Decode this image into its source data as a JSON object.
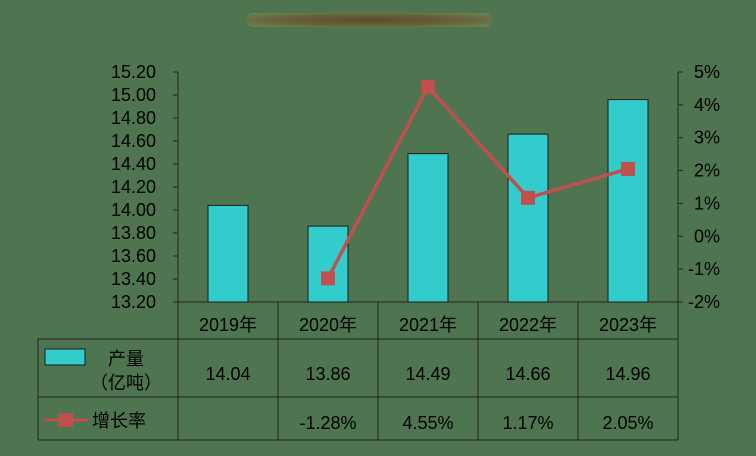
{
  "chart_data": {
    "type": "bar",
    "categories": [
      "2019年",
      "2020年",
      "2021年",
      "2022年",
      "2023年"
    ],
    "series": [
      {
        "name": "产量（亿吨）",
        "name_lines": [
          "产量",
          "（亿吨）"
        ],
        "type": "bar",
        "axis": "left",
        "values": [
          14.04,
          13.86,
          14.49,
          14.66,
          14.96
        ],
        "value_labels": [
          "14.04",
          "13.86",
          "14.49",
          "14.66",
          "14.96"
        ],
        "color": "#33cccc"
      },
      {
        "name": "增长率",
        "type": "line",
        "axis": "right",
        "values": [
          null,
          -1.28,
          4.55,
          1.17,
          2.05
        ],
        "value_labels": [
          "",
          "-1.28%",
          "4.55%",
          "1.17%",
          "2.05%"
        ],
        "color": "#c0504d"
      }
    ],
    "y_left": {
      "ylim": [
        13.2,
        15.2
      ],
      "ticks": [
        "15.20",
        "15.00",
        "14.80",
        "14.60",
        "14.40",
        "14.20",
        "14.00",
        "13.80",
        "13.60",
        "13.40",
        "13.20"
      ]
    },
    "y_right": {
      "ylim": [
        -2,
        5
      ],
      "ticks": [
        "5%",
        "4%",
        "3%",
        "2%",
        "1%",
        "0%",
        "-1%",
        "-2%"
      ]
    },
    "title": "",
    "xlabel": "",
    "ylabel": "",
    "grid": false,
    "legend": "data-table",
    "background": "#4f7550"
  }
}
